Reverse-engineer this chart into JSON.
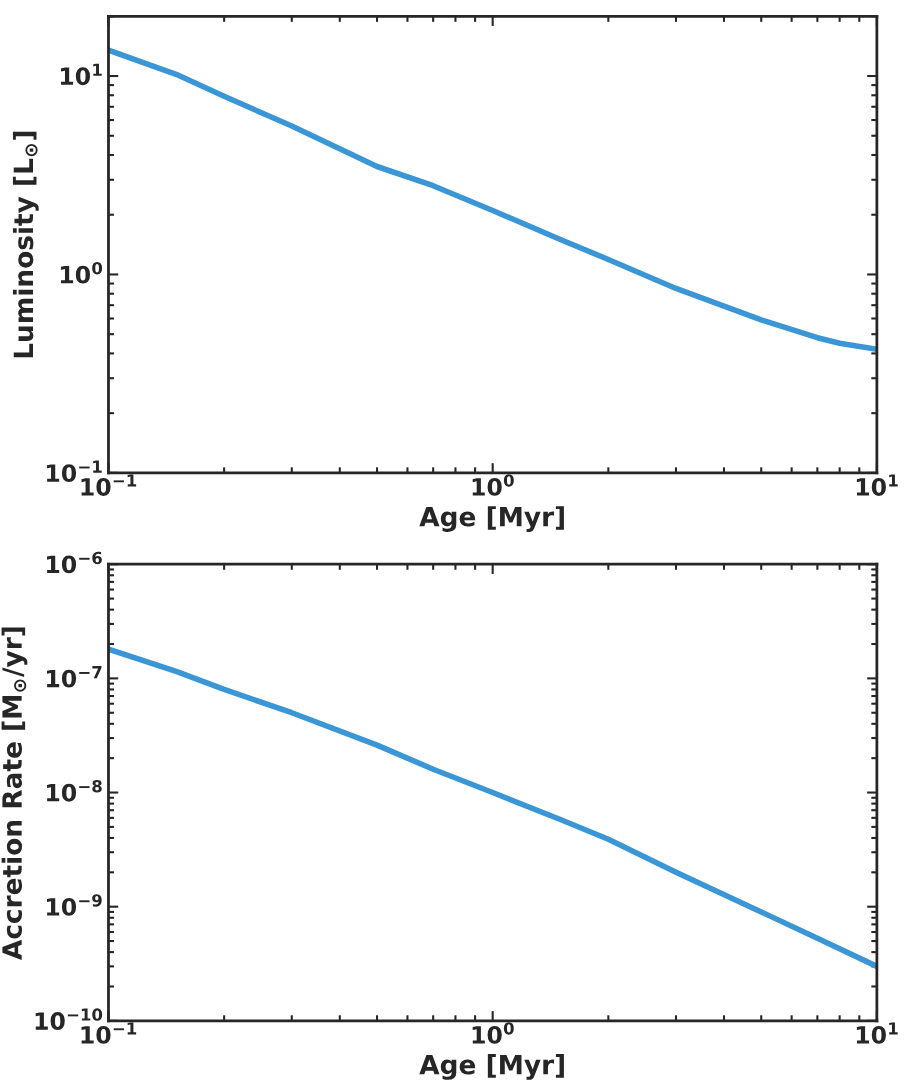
{
  "chart_data": [
    {
      "type": "line",
      "xlabel": "Age [Myr]",
      "ylabel": "Luminosity [L$_{⊙}$]",
      "log": "xy",
      "x": [
        0.1,
        0.15,
        0.2,
        0.3,
        0.5,
        0.7,
        1,
        1.5,
        2,
        3,
        5,
        7,
        8,
        10
      ],
      "series": [
        {
          "color": "#3a96d4",
          "values": [
            13.5,
            10.2,
            7.9,
            5.6,
            3.5,
            2.8,
            2.1,
            1.5,
            1.19,
            0.85,
            0.59,
            0.48,
            0.45,
            0.42
          ]
        }
      ],
      "xlim": [
        0.1,
        10
      ],
      "ylim": [
        0.1,
        20
      ],
      "xticks": [
        {
          "value": 0.1,
          "label": "10$^{−1}$"
        },
        {
          "value": 1,
          "label": "10$^{0}$"
        },
        {
          "value": 10,
          "label": "10$^{1}$"
        }
      ],
      "yticks": [
        {
          "value": 0.1,
          "label": "10$^{−1}$"
        },
        {
          "value": 1,
          "label": "10$^{0}$"
        },
        {
          "value": 10,
          "label": "10$^{1}$"
        }
      ],
      "grid": false,
      "legend": false
    },
    {
      "type": "line",
      "xlabel": "Age [Myr]",
      "ylabel": "Accretion Rate [M$_{⊙}$/yr]",
      "log": "xy",
      "x": [
        0.1,
        0.15,
        0.2,
        0.3,
        0.5,
        0.7,
        1,
        1.5,
        2,
        3,
        5,
        7,
        10
      ],
      "series": [
        {
          "color": "#3a96d4",
          "values": [
            1.8e-07,
            1.15e-07,
            8e-08,
            5e-08,
            2.6e-08,
            1.6e-08,
            1e-08,
            5.8e-09,
            3.9e-09,
            2e-09,
            9e-10,
            5.3e-10,
            3e-10
          ]
        }
      ],
      "xlim": [
        0.1,
        10
      ],
      "ylim": [
        1e-10,
        1e-06
      ],
      "xticks": [
        {
          "value": 0.1,
          "label": "10$^{−1}$"
        },
        {
          "value": 1,
          "label": "10$^{0}$"
        },
        {
          "value": 10,
          "label": "10$^{1}$"
        }
      ],
      "yticks": [
        {
          "value": 1e-10,
          "label": "10$^{−10}$"
        },
        {
          "value": 1e-09,
          "label": "10$^{−9}$"
        },
        {
          "value": 1e-08,
          "label": "10$^{−8}$"
        },
        {
          "value": 1e-07,
          "label": "10$^{−7}$"
        },
        {
          "value": 1e-06,
          "label": "10$^{−6}$"
        }
      ],
      "grid": false,
      "legend": false
    }
  ]
}
